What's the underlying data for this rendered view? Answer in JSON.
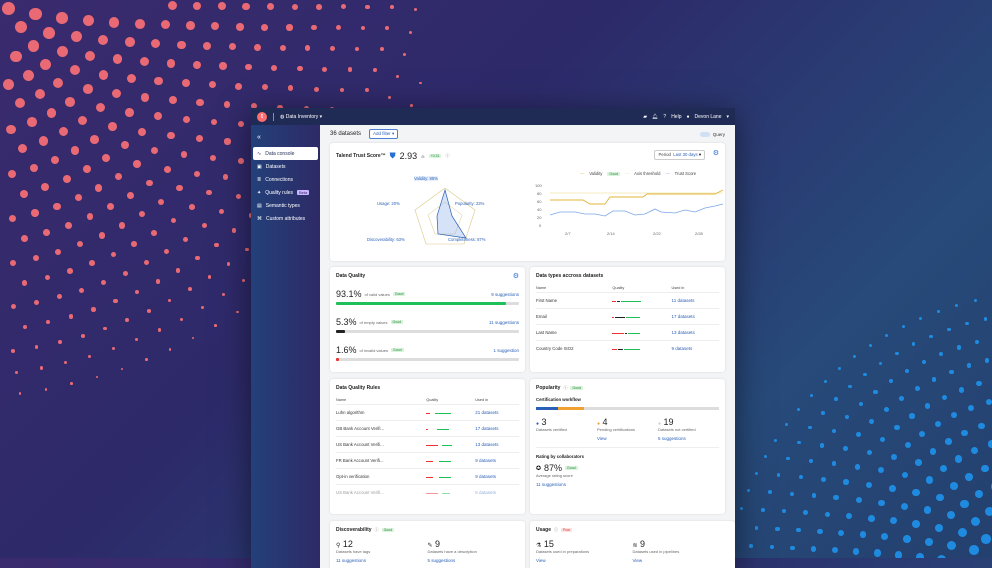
{
  "topbar": {
    "app_initial": "t",
    "workspace": "Data Inventory",
    "help": "Help",
    "user": "Devon Lane"
  },
  "sidebar": {
    "collapse": "«",
    "items": [
      {
        "label": "Data console",
        "icon": "activity-icon"
      },
      {
        "label": "Datasets",
        "icon": "datasets-icon"
      },
      {
        "label": "Connections",
        "icon": "database-icon"
      },
      {
        "label": "Quality rules",
        "icon": "rules-icon",
        "badge": "Beta"
      },
      {
        "label": "Semantic types",
        "icon": "semantic-icon"
      },
      {
        "label": "Custom attributes",
        "icon": "tag-icon"
      }
    ]
  },
  "header": {
    "count": "36 datasets",
    "add_filter": "Add filter",
    "query": "Query"
  },
  "trust": {
    "title": "Talend Trust Score™",
    "score": "2.93",
    "of": "/5",
    "delta": "+0.31",
    "period_label": "Period",
    "period_value": "Last 30 days",
    "radar": {
      "validity": "Validity: 85%",
      "popularity": "Popularity: 23%",
      "completeness": "Completeness: 87%",
      "discoverability": "Discoverability: 63%",
      "usage": "Usage: 20%"
    },
    "legend": {
      "validity": "Validity",
      "good": "Good",
      "axis": "Axis threshold",
      "trust": "Trust Score"
    },
    "yticks": [
      "100",
      "80",
      "60",
      "40",
      "20",
      "0"
    ],
    "xticks": [
      "2/7",
      "2/14",
      "2/22",
      "2/28"
    ]
  },
  "quality": {
    "title": "Data Quality",
    "rows": [
      {
        "pct": "93.1%",
        "desc": "of valid values",
        "badge": "Good",
        "link": "9 suggestions",
        "fill": 93,
        "color": "#1fbf5a"
      },
      {
        "pct": "5.3%",
        "desc": "of empty values",
        "badge": "Good",
        "link": "11 suggestions",
        "fill": 5,
        "color": "#222"
      },
      {
        "pct": "1.6%",
        "desc": "of invalid values",
        "badge": "Good",
        "link": "1 suggestion",
        "fill": 1.6,
        "color": "#e33"
      }
    ]
  },
  "types": {
    "title": "Data types accross datasets",
    "cols": [
      "Name",
      "Quality",
      "Used in"
    ],
    "rows": [
      {
        "name": "First Name",
        "used": "11 datasets"
      },
      {
        "name": "Email",
        "used": "17 datasets"
      },
      {
        "name": "Last Name",
        "used": "13 datasets"
      },
      {
        "name": "Country Code ISO2",
        "used": "9 datasets"
      }
    ]
  },
  "rules": {
    "title": "Data Quality Rules",
    "cols": [
      "Name",
      "Quality",
      "Used in"
    ],
    "rows": [
      {
        "name": "Luhn algorithm",
        "used": "21 datasets"
      },
      {
        "name": "GB Bank Account Verifi...",
        "used": "17 datasets"
      },
      {
        "name": "US Bank Account Verifi...",
        "used": "13 datasets"
      },
      {
        "name": "FR Bank Account Verifi...",
        "used": "9 datasets"
      },
      {
        "name": "Opt-in verification",
        "used": "9 datasets"
      },
      {
        "name": "US Bank Account Verifi...",
        "used": "5 datasets"
      }
    ]
  },
  "popularity": {
    "title": "Popularity",
    "badge": "Good",
    "workflow": "Certification workflow",
    "stats": [
      {
        "n": "3",
        "label": "Datasets certified",
        "color": "#2a5fb7"
      },
      {
        "n": "4",
        "label": "Pending certifications",
        "link": "View",
        "color": "#f0a030"
      },
      {
        "n": "19",
        "label": "Datasets not certified",
        "link": "5 suggestions",
        "color": "#ccc"
      }
    ],
    "rating_title": "Rating by collaborators",
    "rating": "87%",
    "rating_badge": "Good",
    "rating_label": "Average rating score",
    "rating_link": "11 suggestions"
  },
  "discover": {
    "title": "Discoverability",
    "badge": "Good",
    "stats": [
      {
        "n": "12",
        "label": "Datasets have tags",
        "link": "11 suggestions"
      },
      {
        "n": "9",
        "label": "Datasets have a description",
        "link": "5 suggestions"
      }
    ]
  },
  "usage": {
    "title": "Usage",
    "badge": "Poor",
    "stats": [
      {
        "n": "15",
        "label": "Datasets used in preparations",
        "link": "View"
      },
      {
        "n": "9",
        "label": "Datasets used in pipelines",
        "link": "View"
      }
    ]
  }
}
